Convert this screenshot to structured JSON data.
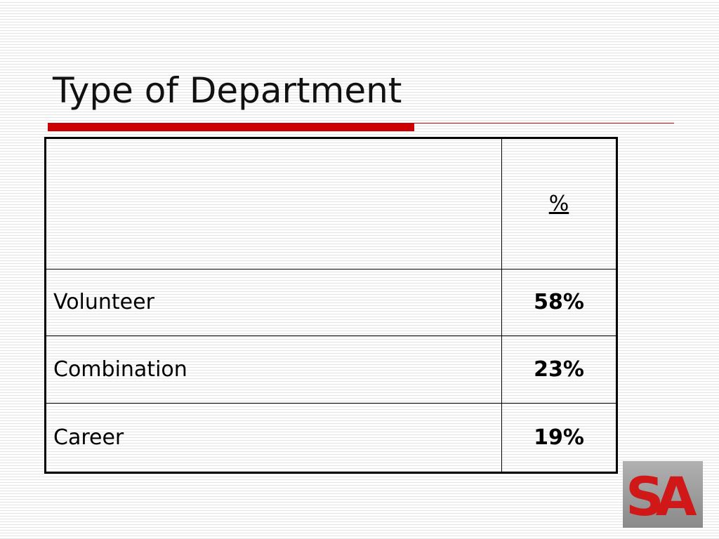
{
  "header": {
    "title": "Type of Department"
  },
  "table": {
    "column_header": "%",
    "rows": [
      [
        "Volunteer",
        "58%"
      ],
      [
        "Combination",
        "23%"
      ],
      [
        "Career",
        "19%"
      ]
    ]
  },
  "logo": "SA"
}
